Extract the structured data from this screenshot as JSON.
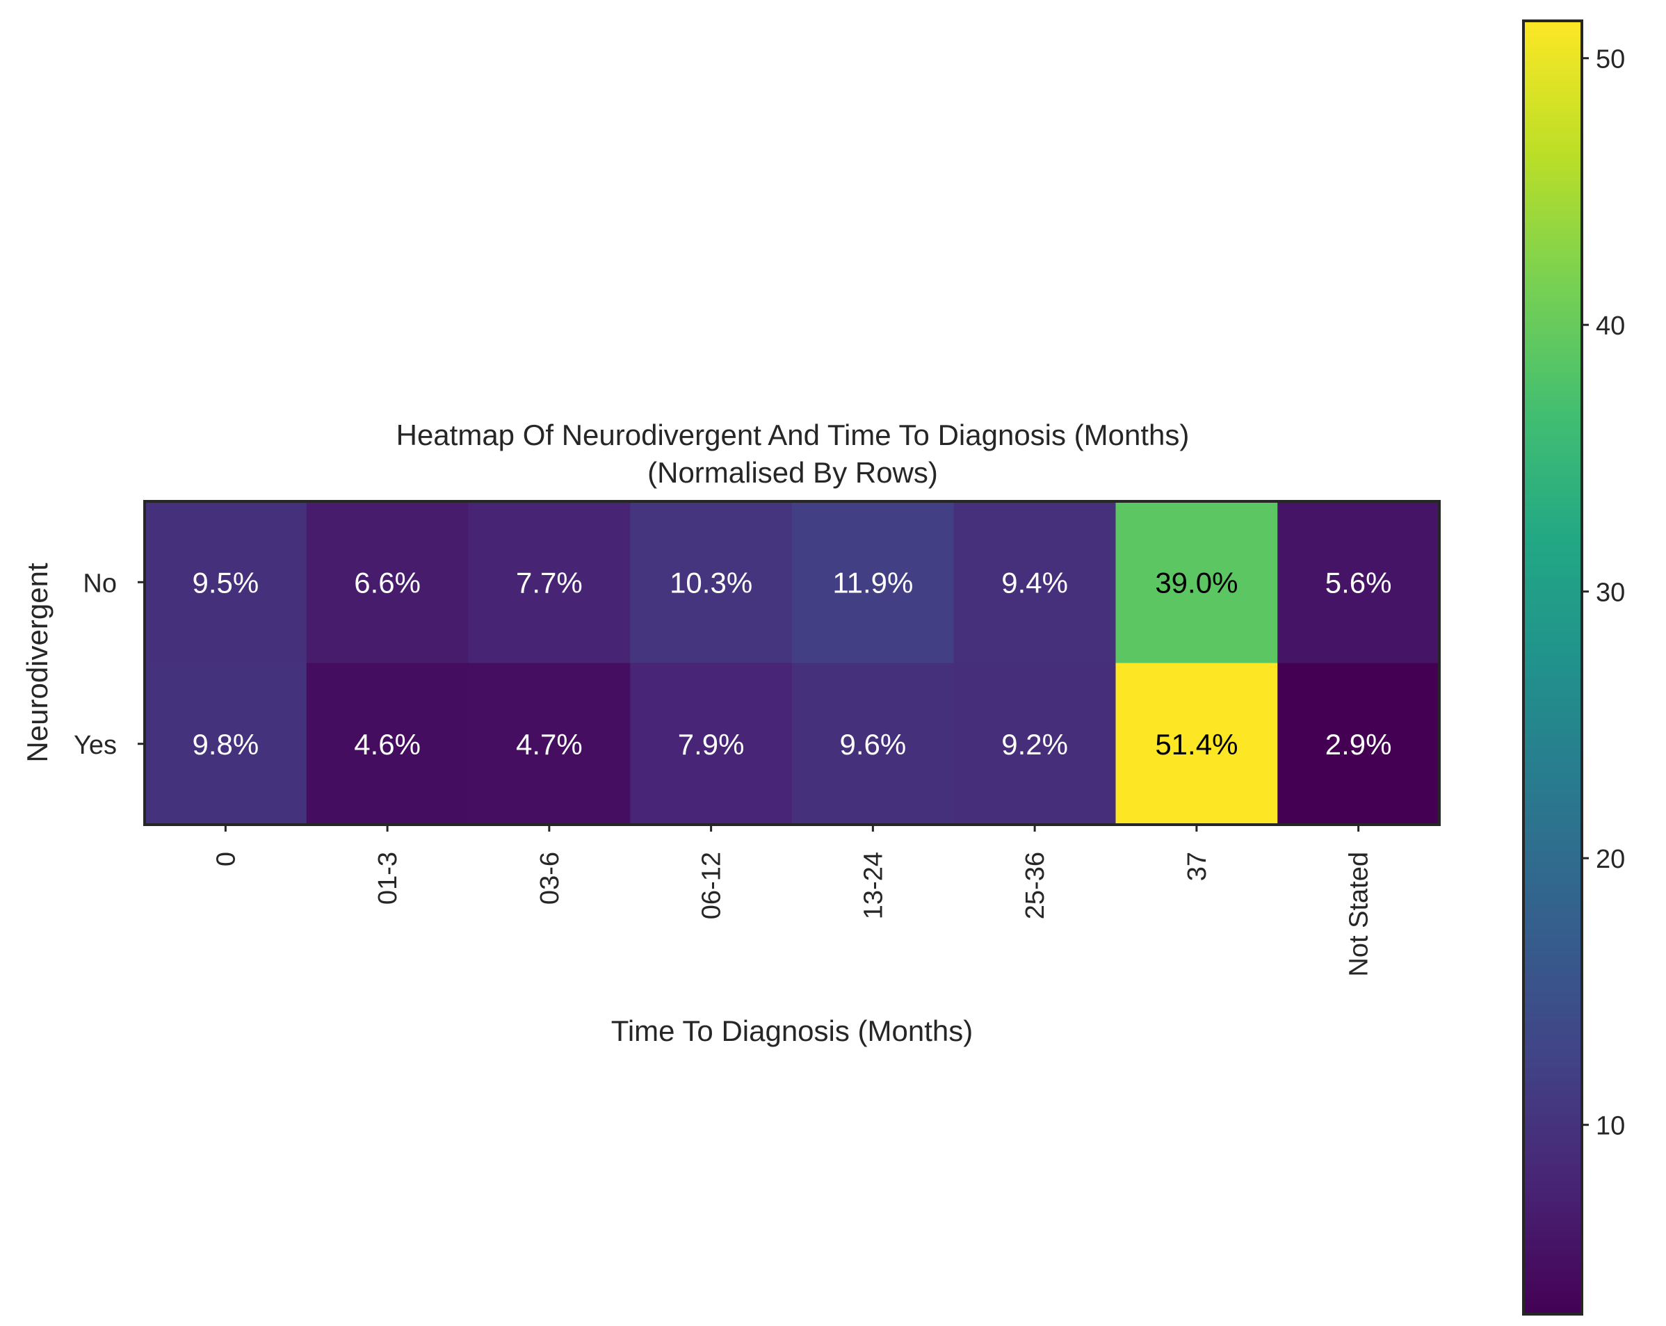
{
  "chart_data": {
    "type": "heatmap",
    "title": "Heatmap Of Neurodivergent And Time To Diagnosis (Months)",
    "subtitle": "(Normalised By Rows)",
    "xlabel": "Time To Diagnosis (Months)",
    "ylabel": "Neurodivergent",
    "x_categories": [
      "0",
      "01-3",
      "03-6",
      "06-12",
      "13-24",
      "25-36",
      "37",
      "Not Stated"
    ],
    "y_categories": [
      "No",
      "Yes"
    ],
    "values": [
      [
        9.5,
        6.6,
        7.7,
        10.3,
        11.9,
        9.4,
        39.0,
        5.6
      ],
      [
        9.8,
        4.6,
        4.7,
        7.9,
        9.6,
        9.2,
        51.4,
        2.9
      ]
    ],
    "cell_labels": [
      [
        "9.5%",
        "6.6%",
        "7.7%",
        "10.3%",
        "11.9%",
        "9.4%",
        "39.0%",
        "5.6%"
      ],
      [
        "9.8%",
        "4.6%",
        "4.7%",
        "7.9%",
        "9.6%",
        "9.2%",
        "51.4%",
        "2.9%"
      ]
    ],
    "colormap": "viridis",
    "colorbar": {
      "range": [
        2.9,
        51.4
      ],
      "ticks": [
        10,
        20,
        30,
        40,
        50
      ],
      "tick_labels": [
        "10",
        "20",
        "30",
        "40",
        "50"
      ]
    },
    "grid": false,
    "legend": "colorbar-right"
  }
}
